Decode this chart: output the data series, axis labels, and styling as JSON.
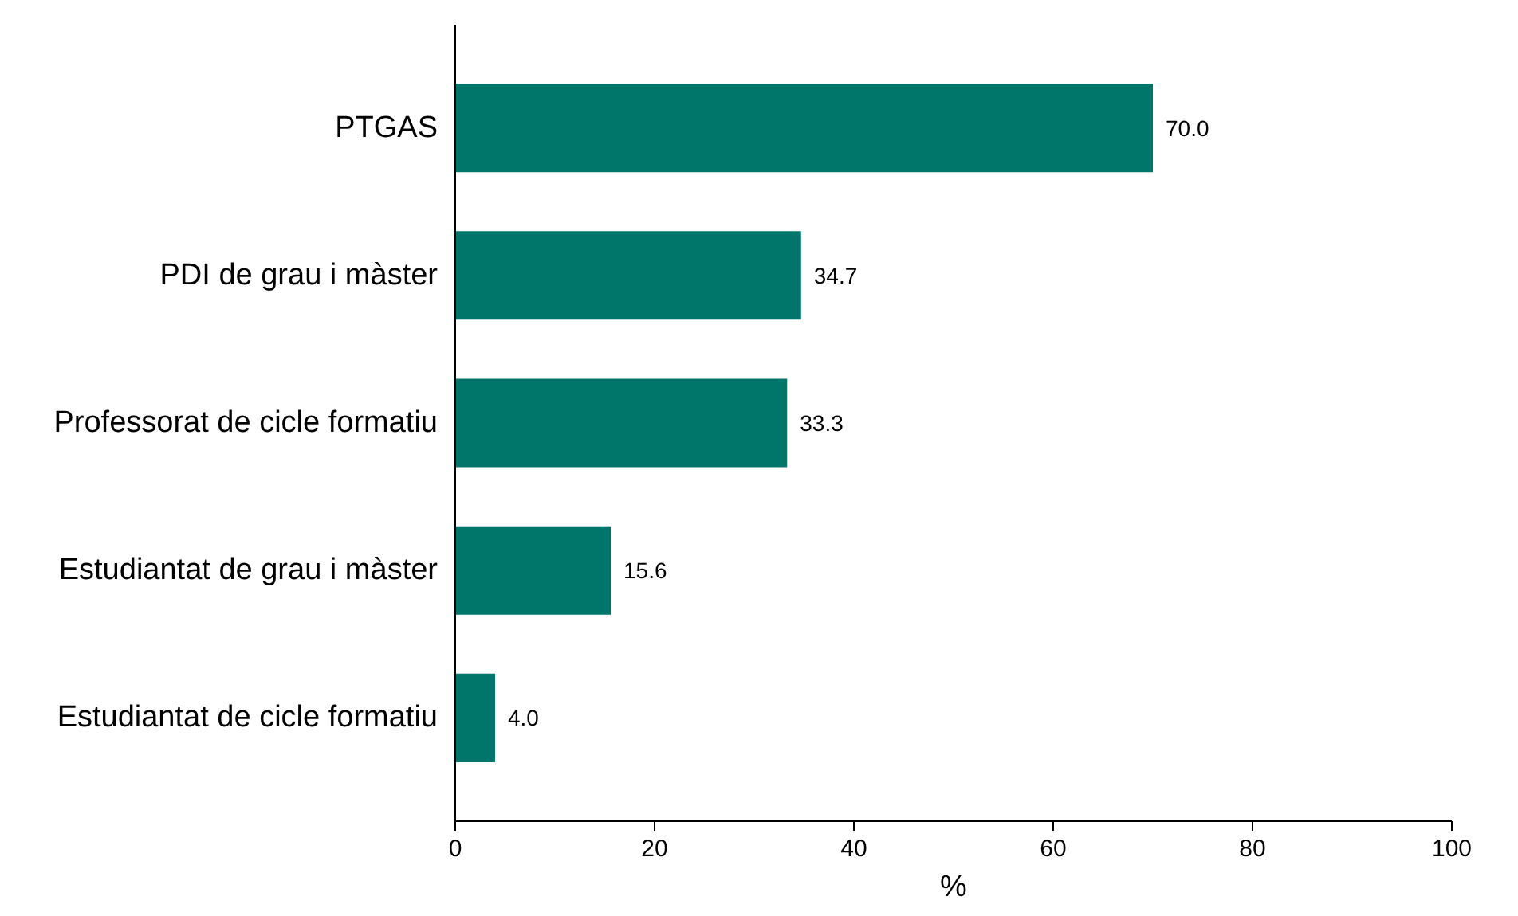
{
  "chart_data": {
    "type": "bar",
    "orientation": "horizontal",
    "xlabel": "%",
    "categories": [
      "PTGAS",
      "PDI de grau i màster",
      "Professorat de cicle formatiu",
      "Estudiantat de grau i màster",
      "Estudiantat de cicle formatiu"
    ],
    "values": [
      70.0,
      34.7,
      33.3,
      15.6,
      4.0
    ],
    "value_labels": [
      "70.0",
      "34.7",
      "33.3",
      "15.6",
      "4.0"
    ],
    "color": "#00766b",
    "xlim": [
      0,
      100
    ],
    "xticks": [
      0,
      20,
      40,
      60,
      80,
      100
    ],
    "grid": false
  }
}
